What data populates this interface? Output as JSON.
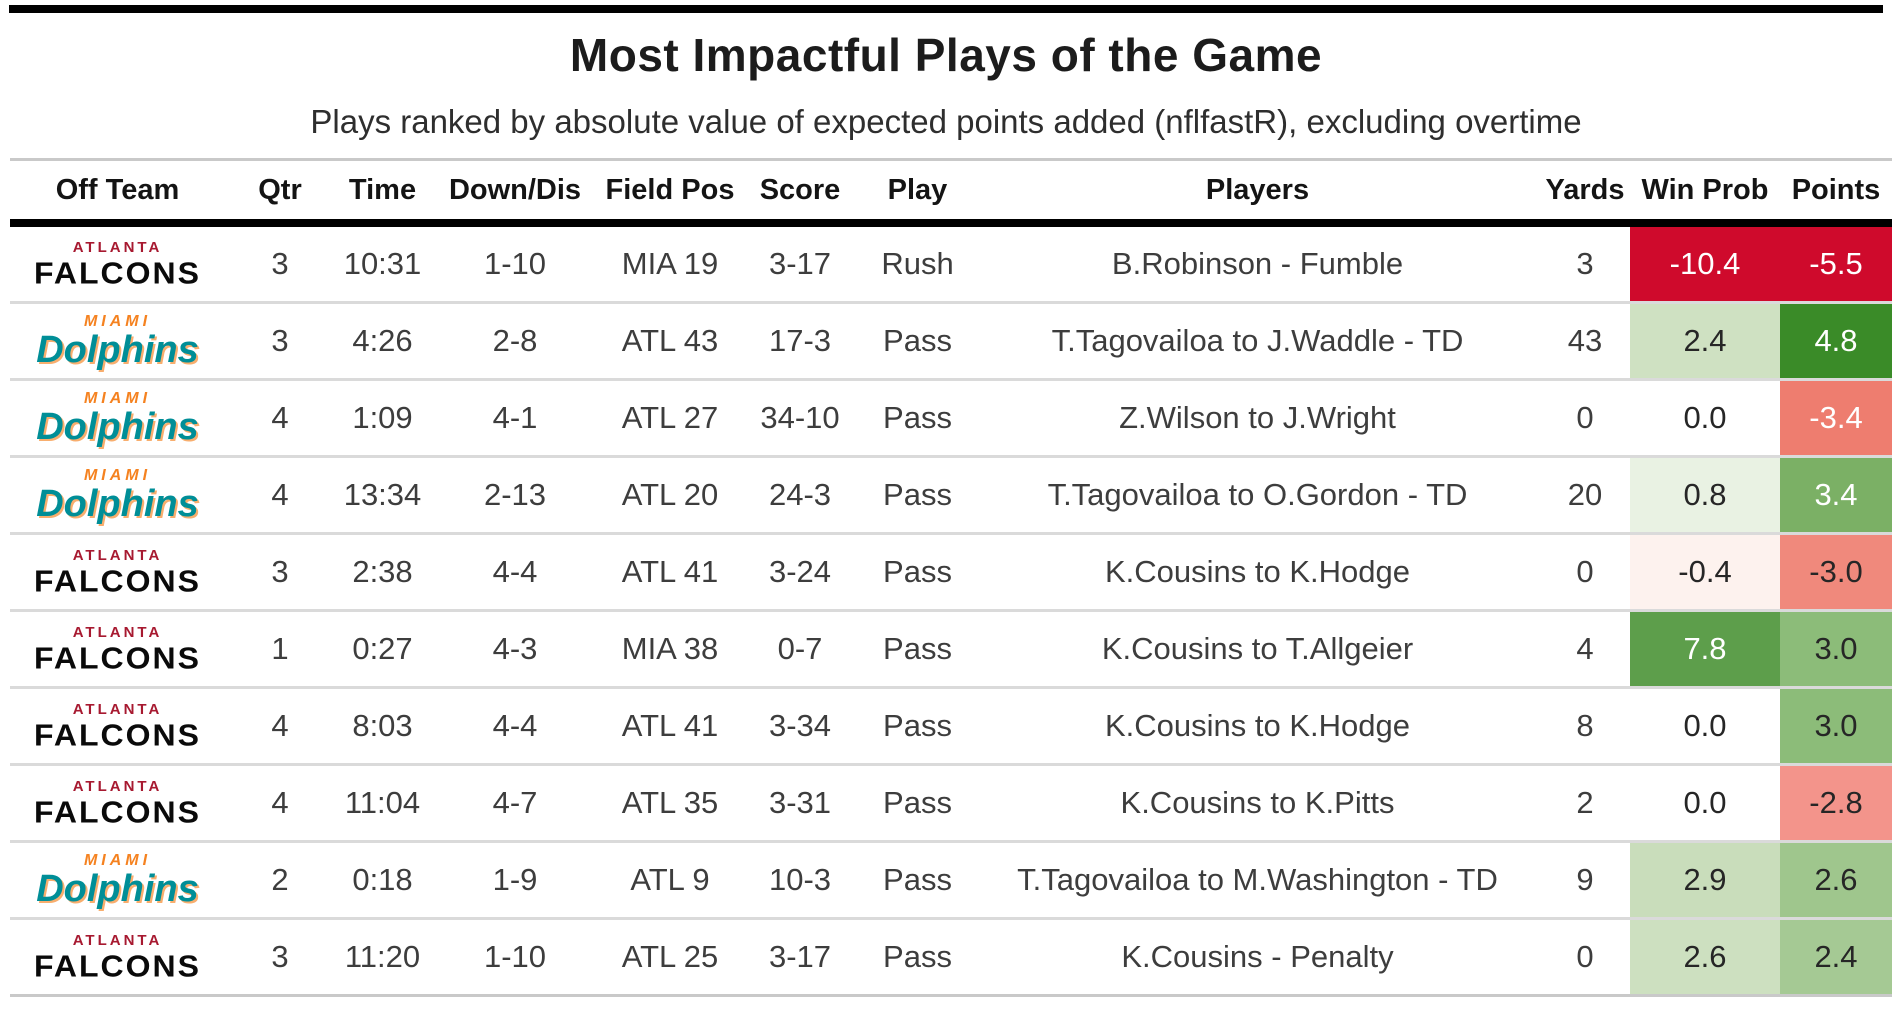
{
  "colors": {
    "falcons_red": "#A71930",
    "falcons_black": "#0a0a0a",
    "dolphins_orange": "#F58220",
    "dolphins_teal": "#008E97",
    "line_black": "#000000",
    "line_gray": "#c9c9c9",
    "row_sep": "#dadada",
    "text_dark": "#3d3d3d"
  },
  "chart_data": {
    "type": "table",
    "title": "Most Impactful Plays of the Game",
    "subtitle": "Plays ranked by absolute value of expected points added (nflfastR), excluding overtime",
    "columns": [
      "Off Team",
      "Qtr",
      "Time",
      "Down/Dis",
      "Field Pos",
      "Score",
      "Play",
      "Players",
      "Yards",
      "Win Prob",
      "Points"
    ],
    "rows": [
      {
        "team_city": "ATLANTA",
        "team_name": "FALCONS",
        "qtr": "3",
        "time": "10:31",
        "down_dis": "1-10",
        "field_pos": "MIA 19",
        "score": "3-17",
        "play": "Rush",
        "players": "B.Robinson - Fumble",
        "yards": "3",
        "win_prob": {
          "value": "-10.4",
          "bg": "#cf0a2c",
          "fg": "#ffffff"
        },
        "points": {
          "value": "-5.5",
          "bg": "#cf0a2c",
          "fg": "#ffffff"
        }
      },
      {
        "team_city": "MIAMI",
        "team_name": "Dolphins",
        "qtr": "3",
        "time": "4:26",
        "down_dis": "2-8",
        "field_pos": "ATL 43",
        "score": "17-3",
        "play": "Pass",
        "players": "T.Tagovailoa to J.Waddle - TD",
        "yards": "43",
        "win_prob": {
          "value": "2.4",
          "bg": "#cfe1c2",
          "fg": "#262626"
        },
        "points": {
          "value": "4.8",
          "bg": "#3a8b28",
          "fg": "#ffffff"
        }
      },
      {
        "team_city": "MIAMI",
        "team_name": "Dolphins",
        "qtr": "4",
        "time": "1:09",
        "down_dis": "4-1",
        "field_pos": "ATL 27",
        "score": "34-10",
        "play": "Pass",
        "players": "Z.Wilson to J.Wright",
        "yards": "0",
        "win_prob": {
          "value": "0.0",
          "bg": "#ffffff",
          "fg": "#262626"
        },
        "points": {
          "value": "-3.4",
          "bg": "#ee7d6f",
          "fg": "#ffffff"
        }
      },
      {
        "team_city": "MIAMI",
        "team_name": "Dolphins",
        "qtr": "4",
        "time": "13:34",
        "down_dis": "2-13",
        "field_pos": "ATL 20",
        "score": "24-3",
        "play": "Pass",
        "players": "T.Tagovailoa to O.Gordon - TD",
        "yards": "20",
        "win_prob": {
          "value": "0.8",
          "bg": "#e9f2e3",
          "fg": "#262626"
        },
        "points": {
          "value": "3.4",
          "bg": "#7bb065",
          "fg": "#ffffff"
        }
      },
      {
        "team_city": "ATLANTA",
        "team_name": "FALCONS",
        "qtr": "3",
        "time": "2:38",
        "down_dis": "4-4",
        "field_pos": "ATL 41",
        "score": "3-24",
        "play": "Pass",
        "players": "K.Cousins to K.Hodge",
        "yards": "0",
        "win_prob": {
          "value": "-0.4",
          "bg": "#fdf2ee",
          "fg": "#262626"
        },
        "points": {
          "value": "-3.0",
          "bg": "#f0897c",
          "fg": "#262626"
        }
      },
      {
        "team_city": "ATLANTA",
        "team_name": "FALCONS",
        "qtr": "1",
        "time": "0:27",
        "down_dis": "4-3",
        "field_pos": "MIA 38",
        "score": "0-7",
        "play": "Pass",
        "players": "K.Cousins to T.Allgeier",
        "yards": "4",
        "win_prob": {
          "value": "7.8",
          "bg": "#5d9e4b",
          "fg": "#ffffff"
        },
        "points": {
          "value": "3.0",
          "bg": "#8cbc79",
          "fg": "#262626"
        }
      },
      {
        "team_city": "ATLANTA",
        "team_name": "FALCONS",
        "qtr": "4",
        "time": "8:03",
        "down_dis": "4-4",
        "field_pos": "ATL 41",
        "score": "3-34",
        "play": "Pass",
        "players": "K.Cousins to K.Hodge",
        "yards": "8",
        "win_prob": {
          "value": "0.0",
          "bg": "#ffffff",
          "fg": "#262626"
        },
        "points": {
          "value": "3.0",
          "bg": "#8cbc79",
          "fg": "#262626"
        }
      },
      {
        "team_city": "ATLANTA",
        "team_name": "FALCONS",
        "qtr": "4",
        "time": "11:04",
        "down_dis": "4-7",
        "field_pos": "ATL 35",
        "score": "3-31",
        "play": "Pass",
        "players": "K.Cousins to K.Pitts",
        "yards": "2",
        "win_prob": {
          "value": "0.0",
          "bg": "#ffffff",
          "fg": "#262626"
        },
        "points": {
          "value": "-2.8",
          "bg": "#f3948b",
          "fg": "#262626"
        }
      },
      {
        "team_city": "MIAMI",
        "team_name": "Dolphins",
        "qtr": "2",
        "time": "0:18",
        "down_dis": "1-9",
        "field_pos": "ATL 9",
        "score": "10-3",
        "play": "Pass",
        "players": "T.Tagovailoa to M.Washington - TD",
        "yards": "9",
        "win_prob": {
          "value": "2.9",
          "bg": "#c9ddbb",
          "fg": "#262626"
        },
        "points": {
          "value": "2.6",
          "bg": "#9fc68d",
          "fg": "#262626"
        }
      },
      {
        "team_city": "ATLANTA",
        "team_name": "FALCONS",
        "qtr": "3",
        "time": "11:20",
        "down_dis": "1-10",
        "field_pos": "ATL 25",
        "score": "3-17",
        "play": "Pass",
        "players": "K.Cousins - Penalty",
        "yards": "0",
        "win_prob": {
          "value": "2.6",
          "bg": "#cde0c0",
          "fg": "#262626"
        },
        "points": {
          "value": "2.4",
          "bg": "#a5c994",
          "fg": "#262626"
        }
      }
    ]
  }
}
